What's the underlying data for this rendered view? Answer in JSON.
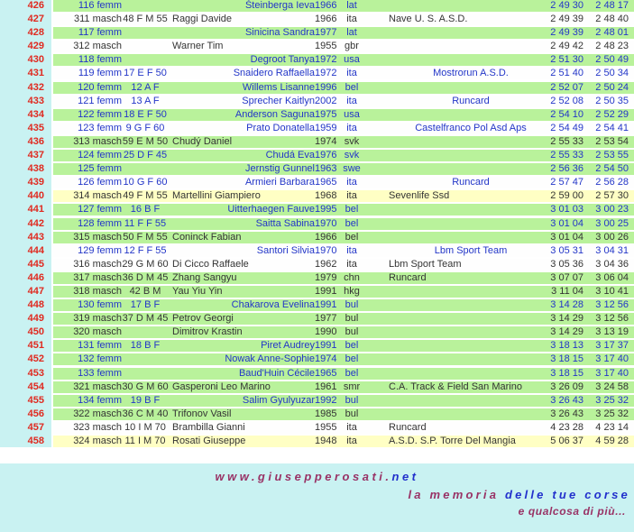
{
  "colors": {
    "gutter_cyan": "#c9f2f2",
    "row_green": "#b9f29b",
    "row_white": "#fefefe",
    "row_yellow": "#ffffc4",
    "rank_red": "#e02a20",
    "female_blue": "#2336c8",
    "male_black": "#343434",
    "footer_maroon": "#993366",
    "footer_blue": "#2230cc"
  },
  "table": {
    "rows": [
      {
        "pos": "426",
        "cat": "116 femm",
        "code": "",
        "name": "Šteinberga Ieva",
        "year": "1966",
        "nat": "lat",
        "team": "",
        "t1": "2 49 30",
        "t2": "2 48 17",
        "gender": "femm",
        "bg": "green"
      },
      {
        "pos": "427",
        "cat": "311 masch",
        "code": "48 F M 55",
        "name": "Raggi Davide",
        "year": "1966",
        "nat": "ita",
        "team": "Nave U. S. A.S.D.",
        "t1": "2 49 39",
        "t2": "2 48 40",
        "gender": "masch",
        "bg": "white"
      },
      {
        "pos": "428",
        "cat": "117 femm",
        "code": "",
        "name": "Sinicina Sandra",
        "year": "1977",
        "nat": "lat",
        "team": "",
        "t1": "2 49 39",
        "t2": "2 48 01",
        "gender": "femm",
        "bg": "green"
      },
      {
        "pos": "429",
        "cat": "312 masch",
        "code": "",
        "name": "Warner Tim",
        "year": "1955",
        "nat": "gbr",
        "team": "",
        "t1": "2 49 42",
        "t2": "2 48 23",
        "gender": "masch",
        "bg": "white"
      },
      {
        "pos": "430",
        "cat": "118 femm",
        "code": "",
        "name": "Degroot Tanya",
        "year": "1972",
        "nat": "usa",
        "team": "",
        "t1": "2 51 30",
        "t2": "2 50 49",
        "gender": "femm",
        "bg": "green"
      },
      {
        "pos": "431",
        "cat": "119 femm",
        "code": "17 E F 50",
        "name": "Snaidero Raffaella",
        "year": "1972",
        "nat": "ita",
        "team": "Mostrorun A.S.D.",
        "t1": "2 51 40",
        "t2": "2 50 34",
        "gender": "femm",
        "bg": "white"
      },
      {
        "pos": "432",
        "cat": "120 femm",
        "code": "12 A F",
        "name": "Willems Lisanne",
        "year": "1996",
        "nat": "bel",
        "team": "",
        "t1": "2 52 07",
        "t2": "2 50 24",
        "gender": "femm",
        "bg": "green"
      },
      {
        "pos": "433",
        "cat": "121 femm",
        "code": "13 A F",
        "name": "Sprecher Kaitlyn",
        "year": "2002",
        "nat": "ita",
        "team": "Runcard",
        "t1": "2 52 08",
        "t2": "2 50 35",
        "gender": "femm",
        "bg": "white"
      },
      {
        "pos": "434",
        "cat": "122 femm",
        "code": "18 E F 50",
        "name": "Anderson Saguna",
        "year": "1975",
        "nat": "usa",
        "team": "",
        "t1": "2 54 10",
        "t2": "2 52 29",
        "gender": "femm",
        "bg": "green"
      },
      {
        "pos": "435",
        "cat": "123 femm",
        "code": "9 G F 60",
        "name": "Prato Donatella",
        "year": "1959",
        "nat": "ita",
        "team": "Castelfranco Pol Asd Aps",
        "t1": "2 54 49",
        "t2": "2 54 41",
        "gender": "femm",
        "bg": "white"
      },
      {
        "pos": "436",
        "cat": "313 masch",
        "code": "59 E M 50",
        "name": "Chudý Daniel",
        "year": "1974",
        "nat": "svk",
        "team": "",
        "t1": "2 55 33",
        "t2": "2 53 54",
        "gender": "masch",
        "bg": "green"
      },
      {
        "pos": "437",
        "cat": "124 femm",
        "code": "25 D F 45",
        "name": "Chudá Eva",
        "year": "1976",
        "nat": "svk",
        "team": "",
        "t1": "2 55 33",
        "t2": "2 53 55",
        "gender": "femm",
        "bg": "green"
      },
      {
        "pos": "438",
        "cat": "125 femm",
        "code": "",
        "name": "Jernstig Gunnel",
        "year": "1963",
        "nat": "swe",
        "team": "",
        "t1": "2 56 36",
        "t2": "2 54 50",
        "gender": "femm",
        "bg": "green"
      },
      {
        "pos": "439",
        "cat": "126 femm",
        "code": "10 G F 60",
        "name": "Armieri Barbara",
        "year": "1965",
        "nat": "ita",
        "team": "Runcard",
        "t1": "2 57 47",
        "t2": "2 56 28",
        "gender": "femm",
        "bg": "white"
      },
      {
        "pos": "440",
        "cat": "314 masch",
        "code": "49 F M 55",
        "name": "Martellini Giampiero",
        "year": "1968",
        "nat": "ita",
        "team": "Sevenlife Ssd",
        "t1": "2 59 00",
        "t2": "2 57 30",
        "gender": "masch",
        "bg": "yellow"
      },
      {
        "pos": "441",
        "cat": "127 femm",
        "code": "16 B F",
        "name": "Uitterhaegen Fauve",
        "year": "1995",
        "nat": "bel",
        "team": "",
        "t1": "3 01 03",
        "t2": "3 00 23",
        "gender": "femm",
        "bg": "green"
      },
      {
        "pos": "442",
        "cat": "128 femm",
        "code": "11 F F 55",
        "name": "Saitta Sabina",
        "year": "1970",
        "nat": "bel",
        "team": "",
        "t1": "3 01 04",
        "t2": "3 00 25",
        "gender": "femm",
        "bg": "green"
      },
      {
        "pos": "443",
        "cat": "315 masch",
        "code": "50 F M 55",
        "name": "Coninck Fabian",
        "year": "1966",
        "nat": "bel",
        "team": "",
        "t1": "3 01 04",
        "t2": "3 00 26",
        "gender": "masch",
        "bg": "green"
      },
      {
        "pos": "444",
        "cat": "129 femm",
        "code": "12 F F 55",
        "name": "Santori Silvia",
        "year": "1970",
        "nat": "ita",
        "team": "Lbm Sport Team",
        "t1": "3 05 31",
        "t2": "3 04 31",
        "gender": "femm",
        "bg": "white"
      },
      {
        "pos": "445",
        "cat": "316 masch",
        "code": "29 G M 60",
        "name": "Di Cicco Raffaele",
        "year": "1962",
        "nat": "ita",
        "team": "Lbm Sport Team",
        "t1": "3 05 36",
        "t2": "3 04 36",
        "gender": "masch",
        "bg": "white"
      },
      {
        "pos": "446",
        "cat": "317 masch",
        "code": "36 D M 45",
        "name": "Zhang Sangyu",
        "year": "1979",
        "nat": "chn",
        "team": "Runcard",
        "t1": "3 07 07",
        "t2": "3 06 04",
        "gender": "masch",
        "bg": "green"
      },
      {
        "pos": "447",
        "cat": "318 masch",
        "code": "42 B M",
        "name": "Yau Yiu Yin",
        "year": "1991",
        "nat": "hkg",
        "team": "",
        "t1": "3 11 04",
        "t2": "3 10 41",
        "gender": "masch",
        "bg": "green"
      },
      {
        "pos": "448",
        "cat": "130 femm",
        "code": "17 B F",
        "name": "Chakarova Evelina",
        "year": "1991",
        "nat": "bul",
        "team": "",
        "t1": "3 14 28",
        "t2": "3 12 56",
        "gender": "femm",
        "bg": "green"
      },
      {
        "pos": "449",
        "cat": "319 masch",
        "code": "37 D M 45",
        "name": "Petrov Georgi",
        "year": "1977",
        "nat": "bul",
        "team": "",
        "t1": "3 14 29",
        "t2": "3 12 56",
        "gender": "masch",
        "bg": "green"
      },
      {
        "pos": "450",
        "cat": "320 masch",
        "code": "",
        "name": "Dimitrov Krastin",
        "year": "1990",
        "nat": "bul",
        "team": "",
        "t1": "3 14 29",
        "t2": "3 13 19",
        "gender": "masch",
        "bg": "green"
      },
      {
        "pos": "451",
        "cat": "131 femm",
        "code": "18 B F",
        "name": "Piret Audrey",
        "year": "1991",
        "nat": "bel",
        "team": "",
        "t1": "3 18 13",
        "t2": "3 17 37",
        "gender": "femm",
        "bg": "green"
      },
      {
        "pos": "452",
        "cat": "132 femm",
        "code": "",
        "name": "Nowak Anne-Sophie",
        "year": "1974",
        "nat": "bel",
        "team": "",
        "t1": "3 18 15",
        "t2": "3 17 40",
        "gender": "femm",
        "bg": "green"
      },
      {
        "pos": "453",
        "cat": "133 femm",
        "code": "",
        "name": "Baud'Huin Cécile",
        "year": "1965",
        "nat": "bel",
        "team": "",
        "t1": "3 18 15",
        "t2": "3 17 40",
        "gender": "femm",
        "bg": "green"
      },
      {
        "pos": "454",
        "cat": "321 masch",
        "code": "30 G M 60",
        "name": "Gasperoni Leo Marino",
        "year": "1961",
        "nat": "smr",
        "team": "C.A. Track & Field San Marino",
        "t1": "3 26 09",
        "t2": "3 24 58",
        "gender": "masch",
        "bg": "green"
      },
      {
        "pos": "455",
        "cat": "134 femm",
        "code": "19 B F",
        "name": "Salim Gyulyuzar",
        "year": "1992",
        "nat": "bul",
        "team": "",
        "t1": "3 26 43",
        "t2": "3 25 32",
        "gender": "femm",
        "bg": "green"
      },
      {
        "pos": "456",
        "cat": "322 masch",
        "code": "36 C M 40",
        "name": "Trifonov Vasil",
        "year": "1985",
        "nat": "bul",
        "team": "",
        "t1": "3 26 43",
        "t2": "3 25 32",
        "gender": "masch",
        "bg": "green"
      },
      {
        "pos": "457",
        "cat": "323 masch",
        "code": "10 I M 70",
        "name": "Brambilla Gianni",
        "year": "1955",
        "nat": "ita",
        "team": "Runcard",
        "t1": "4 23 28",
        "t2": "4 23 14",
        "gender": "masch",
        "bg": "white"
      },
      {
        "pos": "458",
        "cat": "324 masch",
        "code": "11 I M 70",
        "name": "Rosati Giuseppe",
        "year": "1948",
        "nat": "ita",
        "team": "A.S.D. S.P. Torre Del Mangia",
        "t1": "5 06 37",
        "t2": "4 59 28",
        "gender": "masch",
        "bg": "yellow"
      }
    ]
  },
  "footer": {
    "site_main": "www.giusepperosati.",
    "site_tld": "net",
    "tagline_maroon": "la memoria",
    "tagline_blue": "delle tue corse",
    "tagline2": "e qualcosa di più..."
  }
}
